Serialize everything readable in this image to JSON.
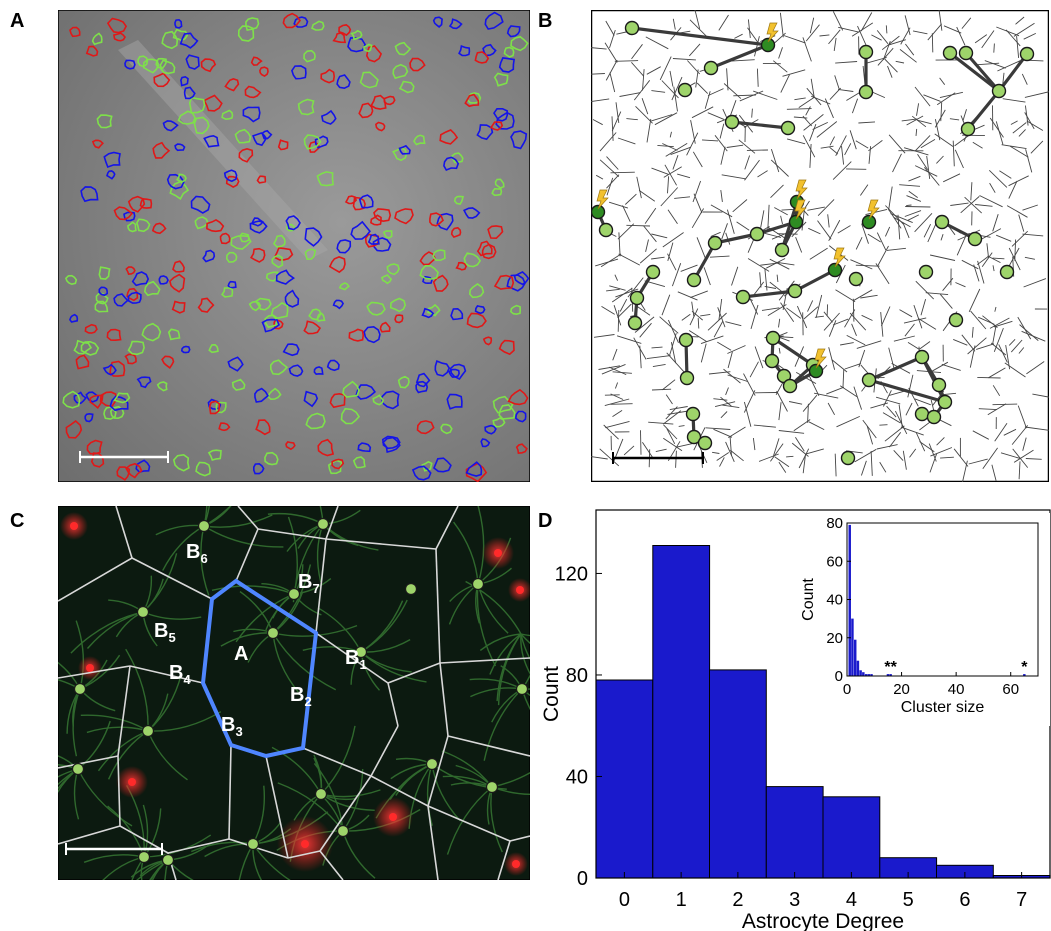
{
  "panels": {
    "a": {
      "letter": "A"
    },
    "b": {
      "letter": "B"
    },
    "c": {
      "letter": "C",
      "labels": [
        {
          "main": "A",
          "sub": ""
        },
        {
          "main": "B",
          "sub": "1"
        },
        {
          "main": "B",
          "sub": "2"
        },
        {
          "main": "B",
          "sub": "3"
        },
        {
          "main": "B",
          "sub": "4"
        },
        {
          "main": "B",
          "sub": "5"
        },
        {
          "main": "B",
          "sub": "6"
        },
        {
          "main": "B",
          "sub": "7"
        }
      ]
    },
    "d": {
      "letter": "D"
    }
  },
  "colors": {
    "roi_red": "#e01818",
    "roi_green": "#7ee04a",
    "roi_blue": "#1414e8",
    "node_fill": "#9ed46a",
    "node_stimulated": "#2e8b22",
    "bolt": "#f2c12e",
    "bar": "#1a1acc",
    "domain_outline": "#4f86ff"
  },
  "chart_data": [
    {
      "type": "bar",
      "categories": [
        "0",
        "1",
        "2",
        "3",
        "4",
        "5",
        "6",
        "7"
      ],
      "values": [
        78,
        131,
        82,
        36,
        32,
        8,
        5,
        1
      ],
      "title": "",
      "xlabel": "Astrocyte Degree",
      "ylabel": "Count",
      "ylim": [
        0,
        145
      ],
      "yticks": [
        "0",
        "40",
        "80",
        "120"
      ],
      "grid": false
    },
    {
      "type": "bar",
      "inset": true,
      "x": [
        1,
        2,
        3,
        4,
        5,
        6,
        7,
        8,
        9,
        15,
        16,
        65
      ],
      "values": [
        79,
        30,
        19,
        8,
        3,
        2,
        1,
        1,
        1,
        1,
        1,
        1
      ],
      "xlabel": "Cluster size",
      "ylabel": "Count",
      "xlim": [
        0,
        70
      ],
      "ylim": [
        0,
        80
      ],
      "xticks": [
        "0",
        "20",
        "40",
        "60"
      ],
      "yticks": [
        "0",
        "20",
        "40",
        "60",
        "80"
      ],
      "annotations": [
        {
          "text": "**",
          "x": 16
        },
        {
          "text": "*",
          "x": 65
        }
      ],
      "grid": false
    }
  ]
}
